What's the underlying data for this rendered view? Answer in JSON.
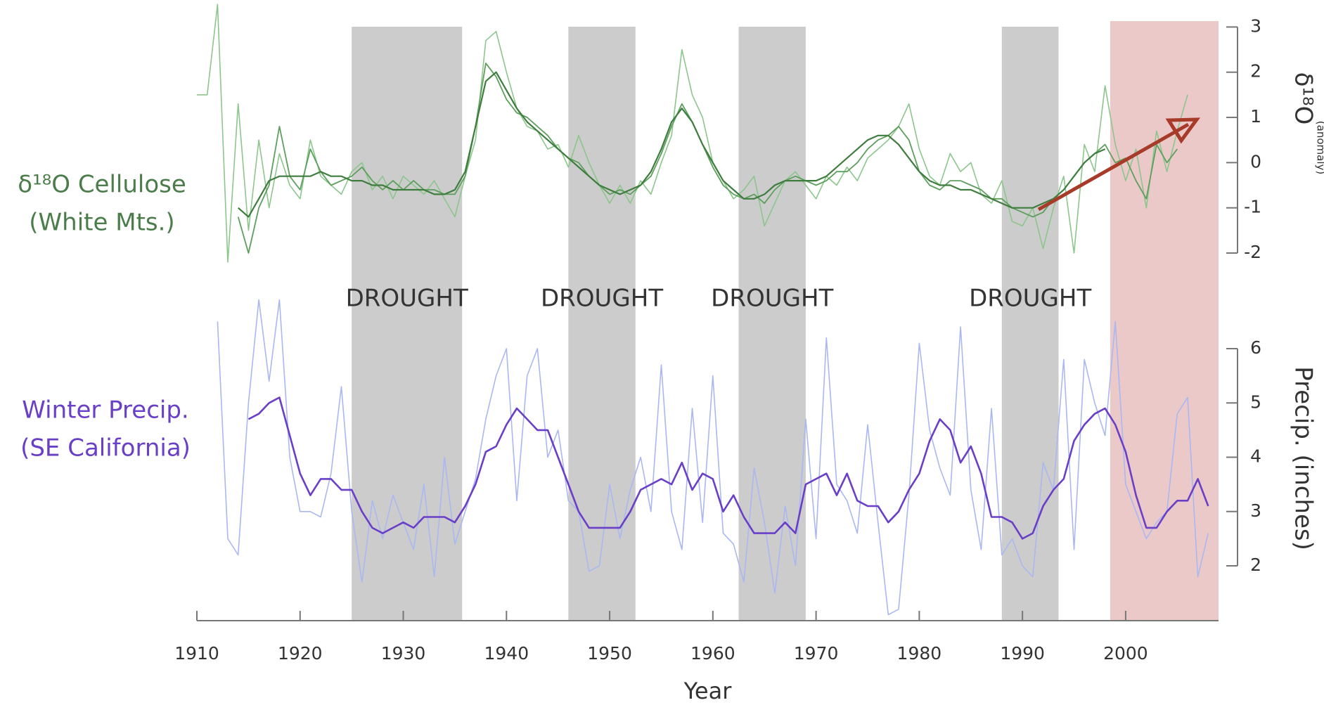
{
  "chart_data": {
    "type": "line",
    "xlabel": "Year",
    "xlim": [
      1910,
      2009
    ],
    "xticks": [
      1910,
      1920,
      1930,
      1940,
      1950,
      1960,
      1970,
      1980,
      1990,
      2000
    ],
    "ylim": [
      -2,
      3
    ],
    "yticks": [
      -2,
      -1,
      0,
      1,
      2,
      3
    ],
    "ylabel": "δ¹⁸O",
    "ylabel_sub": "(anomaly)",
    "y2lim": [
      2,
      6
    ],
    "y2ticks": [
      2,
      3,
      4,
      5,
      6
    ],
    "y2label": "Precip. (inches)",
    "series_labels": [
      {
        "lines": [
          "δ¹⁸O Cellulose",
          "(White Mts.)"
        ],
        "color": "#4b7d4b",
        "axis": "y"
      },
      {
        "lines": [
          "Winter Precip.",
          "(SE California)"
        ],
        "color": "#6a3fc8",
        "axis": "y2"
      }
    ],
    "shaded_periods": [
      {
        "start": 1925,
        "end": 1935.7,
        "label": "DROUGHT",
        "color": "#cccccc"
      },
      {
        "start": 1946,
        "end": 1952.5,
        "label": "DROUGHT",
        "color": "#cccccc"
      },
      {
        "start": 1962.5,
        "end": 1969,
        "label": "DROUGHT",
        "color": "#cccccc"
      },
      {
        "start": 1988,
        "end": 1993.5,
        "label": "DROUGHT",
        "color": "#cccccc"
      },
      {
        "start": 1998.5,
        "end": 2009,
        "color": "#ebc9c9"
      }
    ],
    "x": [
      1910,
      1911,
      1912,
      1913,
      1914,
      1915,
      1916,
      1917,
      1918,
      1919,
      1920,
      1921,
      1922,
      1923,
      1924,
      1925,
      1926,
      1927,
      1928,
      1929,
      1930,
      1931,
      1932,
      1933,
      1934,
      1935,
      1936,
      1937,
      1938,
      1939,
      1940,
      1941,
      1942,
      1943,
      1944,
      1945,
      1946,
      1947,
      1948,
      1949,
      1950,
      1951,
      1952,
      1953,
      1954,
      1955,
      1956,
      1957,
      1958,
      1959,
      1960,
      1961,
      1962,
      1963,
      1964,
      1965,
      1966,
      1967,
      1968,
      1969,
      1970,
      1971,
      1972,
      1973,
      1974,
      1975,
      1976,
      1977,
      1978,
      1979,
      1980,
      1981,
      1982,
      1983,
      1984,
      1985,
      1986,
      1987,
      1988,
      1989,
      1990,
      1991,
      1992,
      1993,
      1994,
      1995,
      1996,
      1997,
      1998,
      1999,
      2000,
      2001,
      2002,
      2003,
      2004,
      2005,
      2006,
      2007,
      2008
    ],
    "series": [
      {
        "color": "#8cc68c",
        "width": 1.6,
        "axis": "y",
        "values": [
          1.5,
          1.5,
          3.5,
          -2.2,
          1.3,
          -1.5,
          0.5,
          -1.0,
          0.2,
          -0.5,
          -0.8,
          0.5,
          -0.3,
          -0.5,
          -0.7,
          -0.2,
          0.0,
          -0.6,
          -0.3,
          -0.8,
          -0.3,
          -0.5,
          -0.7,
          -0.4,
          -0.8,
          -1.2,
          -0.3,
          0.5,
          2.7,
          2.9,
          2.0,
          1.2,
          0.8,
          0.7,
          0.3,
          0.4,
          -0.1,
          0.6,
          0.0,
          -0.5,
          -0.9,
          -0.5,
          -0.9,
          -0.4,
          -0.7,
          0.0,
          0.6,
          2.5,
          1.5,
          1.0,
          0.0,
          -0.4,
          -0.8,
          -0.6,
          -0.3,
          -1.4,
          -0.9,
          -0.4,
          -0.2,
          -0.5,
          -0.8,
          -0.3,
          -0.5,
          -0.1,
          -0.4,
          0.1,
          0.3,
          0.5,
          0.8,
          1.3,
          0.3,
          -0.3,
          -0.5,
          0.2,
          -0.2,
          0.0,
          -0.7,
          -0.9,
          -0.4,
          -1.3,
          -1.4,
          -1.0,
          -1.9,
          -1.0,
          -0.3,
          -2.0,
          0.4,
          -0.2,
          1.7,
          0.4,
          -0.4,
          0.3,
          -1.0,
          0.7,
          -0.2,
          0.7,
          1.5,
          null,
          null
        ]
      },
      {
        "color": "#5e9f5e",
        "width": 1.8,
        "axis": "y",
        "values": [
          null,
          null,
          null,
          null,
          -1.2,
          -2.0,
          -1.0,
          -0.5,
          0.8,
          -0.3,
          -0.6,
          0.3,
          -0.2,
          -0.5,
          -0.4,
          -0.3,
          -0.1,
          -0.4,
          -0.6,
          -0.4,
          -0.6,
          -0.4,
          -0.6,
          -0.6,
          -0.7,
          -0.7,
          -0.3,
          0.8,
          2.2,
          1.9,
          1.4,
          1.1,
          1.0,
          0.8,
          0.6,
          0.3,
          0.1,
          0.0,
          -0.3,
          -0.5,
          -0.7,
          -0.6,
          -0.7,
          -0.5,
          -0.3,
          0.2,
          0.8,
          1.3,
          0.9,
          0.4,
          -0.1,
          -0.5,
          -0.7,
          -0.8,
          -0.7,
          -0.9,
          -0.6,
          -0.4,
          -0.3,
          -0.4,
          -0.5,
          -0.4,
          -0.2,
          -0.2,
          0.0,
          0.3,
          0.5,
          0.6,
          0.8,
          0.5,
          -0.2,
          -0.5,
          -0.6,
          -0.4,
          -0.4,
          -0.5,
          -0.6,
          -0.8,
          -0.8,
          -1.0,
          -1.1,
          -1.2,
          -1.1,
          -0.8,
          -0.6,
          -0.3,
          0.0,
          0.2,
          0.4,
          0.0,
          0.1,
          -0.4,
          -0.8,
          0.4,
          0.0,
          0.3,
          null,
          null,
          null
        ]
      },
      {
        "color": "#3f7d3f",
        "width": 2.2,
        "axis": "y",
        "values": [
          null,
          null,
          null,
          null,
          -1.0,
          -1.2,
          -0.8,
          -0.4,
          -0.3,
          -0.3,
          -0.3,
          -0.3,
          -0.2,
          -0.3,
          -0.3,
          -0.4,
          -0.4,
          -0.5,
          -0.5,
          -0.6,
          -0.6,
          -0.6,
          -0.6,
          -0.7,
          -0.7,
          -0.6,
          -0.2,
          0.8,
          1.8,
          2.0,
          1.6,
          1.2,
          0.9,
          0.7,
          0.5,
          0.3,
          0.1,
          -0.1,
          -0.3,
          -0.5,
          -0.6,
          -0.7,
          -0.6,
          -0.5,
          -0.2,
          0.3,
          0.9,
          1.2,
          0.9,
          0.4,
          0.0,
          -0.4,
          -0.6,
          -0.8,
          -0.8,
          -0.7,
          -0.5,
          -0.4,
          -0.4,
          -0.4,
          -0.4,
          -0.3,
          -0.1,
          0.1,
          0.3,
          0.5,
          0.6,
          0.6,
          0.4,
          0.1,
          -0.2,
          -0.4,
          -0.5,
          -0.5,
          -0.6,
          -0.6,
          -0.7,
          -0.8,
          -0.9,
          -1.0,
          -1.0,
          -1.0,
          -0.9,
          -0.8,
          -0.6,
          -0.3,
          0.0,
          0.2,
          0.3,
          null,
          null,
          null,
          null,
          null,
          null,
          null,
          null,
          null,
          null
        ]
      },
      {
        "color": "#aab8f2",
        "width": 1.6,
        "axis": "y2",
        "values": [
          null,
          null,
          6.5,
          2.5,
          2.2,
          5.0,
          6.9,
          5.4,
          6.9,
          4.0,
          3.0,
          3.0,
          2.9,
          3.7,
          5.3,
          3.0,
          1.7,
          3.2,
          2.5,
          3.3,
          2.8,
          2.3,
          3.5,
          1.8,
          4.0,
          2.4,
          3.0,
          3.6,
          4.7,
          5.5,
          6.0,
          3.2,
          5.5,
          6.0,
          4.0,
          4.5,
          3.2,
          3.0,
          1.9,
          2.0,
          3.5,
          2.5,
          3.4,
          4.0,
          3.0,
          5.7,
          3.0,
          2.3,
          4.9,
          2.8,
          5.5,
          2.6,
          2.4,
          1.7,
          3.8,
          2.8,
          1.5,
          3.1,
          2.0,
          4.7,
          2.5,
          6.2,
          3.5,
          3.2,
          2.6,
          4.6,
          2.8,
          1.1,
          1.2,
          3.3,
          6.1,
          4.5,
          3.8,
          3.3,
          6.4,
          3.4,
          2.3,
          4.9,
          2.2,
          2.5,
          2.0,
          1.8,
          3.9,
          3.4,
          5.8,
          2.3,
          5.8,
          5.0,
          4.4,
          6.5,
          3.5,
          3.0,
          2.5,
          2.8,
          3.0,
          4.8,
          5.1,
          1.8,
          2.6
        ]
      },
      {
        "color": "#6a3fc8",
        "width": 2.6,
        "axis": "y2",
        "values": [
          null,
          null,
          null,
          null,
          null,
          4.7,
          4.8,
          5.0,
          5.1,
          4.4,
          3.7,
          3.3,
          3.6,
          3.6,
          3.4,
          3.4,
          3.0,
          2.7,
          2.6,
          2.7,
          2.8,
          2.7,
          2.9,
          2.9,
          2.9,
          2.8,
          3.1,
          3.5,
          4.1,
          4.2,
          4.6,
          4.9,
          4.7,
          4.5,
          4.5,
          4.0,
          3.5,
          3.0,
          2.7,
          2.7,
          2.7,
          2.7,
          3.0,
          3.4,
          3.5,
          3.6,
          3.5,
          3.9,
          3.4,
          3.7,
          3.6,
          3.0,
          3.3,
          2.9,
          2.6,
          2.6,
          2.6,
          2.8,
          2.6,
          3.5,
          3.6,
          3.7,
          3.3,
          3.7,
          3.2,
          3.1,
          3.1,
          2.8,
          3.0,
          3.4,
          3.7,
          4.3,
          4.7,
          4.5,
          3.9,
          4.2,
          3.7,
          2.9,
          2.9,
          2.8,
          2.5,
          2.6,
          3.1,
          3.4,
          3.6,
          4.3,
          4.6,
          4.8,
          4.9,
          4.6,
          4.1,
          3.3,
          2.7,
          2.7,
          3.0,
          3.2,
          3.2,
          3.6,
          3.1
        ]
      }
    ]
  }
}
